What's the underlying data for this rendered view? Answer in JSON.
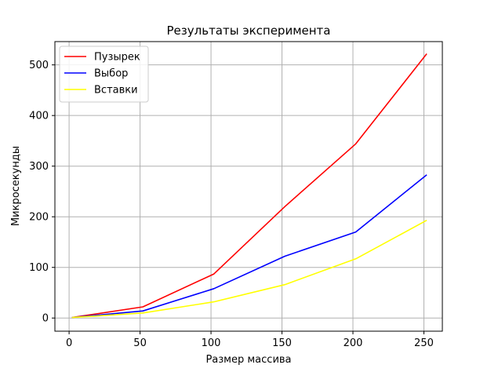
{
  "chart_data": {
    "type": "line",
    "title": "Результаты эксперимента",
    "xlabel": "Размер массива",
    "ylabel": "Микросекунды",
    "xlim": [
      -10,
      263
    ],
    "ylim": [
      -26,
      546
    ],
    "xticks": [
      0,
      50,
      100,
      150,
      200,
      250
    ],
    "yticks": [
      0,
      100,
      200,
      300,
      400,
      500
    ],
    "xtick_labels": [
      "0",
      "50",
      "100",
      "150",
      "200",
      "250"
    ],
    "ytick_labels": [
      "0",
      "100",
      "200",
      "300",
      "400",
      "500"
    ],
    "grid": true,
    "legend_position": "top-left",
    "x": [
      2,
      52,
      102,
      152,
      202,
      252
    ],
    "series": [
      {
        "name": "Пузырек",
        "color": "#ff0000",
        "values": [
          1,
          22,
          87,
          220,
          344,
          522
        ]
      },
      {
        "name": "Выбор",
        "color": "#0000ff",
        "values": [
          1,
          14,
          58,
          122,
          170,
          283
        ]
      },
      {
        "name": "Вставки",
        "color": "#ffff00",
        "values": [
          1,
          10,
          32,
          66,
          117,
          193
        ]
      }
    ]
  }
}
